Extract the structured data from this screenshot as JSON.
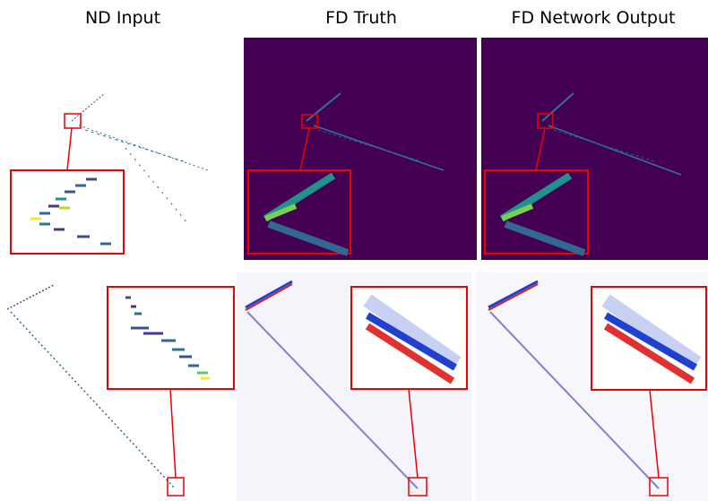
{
  "columns": [
    {
      "title": "ND Input"
    },
    {
      "title": "FD Truth"
    },
    {
      "title": "FD Network Output"
    }
  ]
}
